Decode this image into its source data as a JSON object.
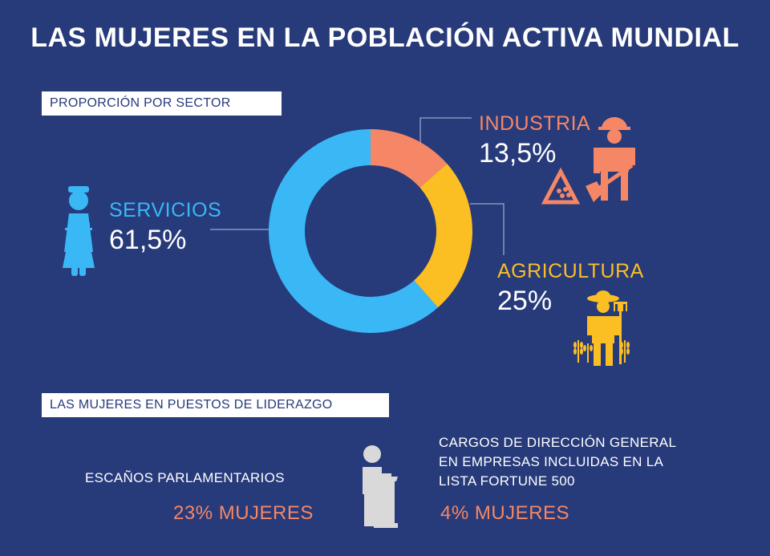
{
  "title": "LAS MUJERES EN LA POBLACIÓN ACTIVA MUNDIAL",
  "section_sector_label": "PROPORCIÓN POR SECTOR",
  "section_leadership_label": "LAS MUJERES EN PUESTOS DE LIDERAZGO",
  "chart_data": {
    "type": "pie",
    "categories": [
      "INDUSTRIA",
      "AGRICULTURA",
      "SERVICIOS"
    ],
    "values": [
      13.5,
      25,
      61.5
    ],
    "value_labels": [
      "13,5%",
      "25%",
      "61,5%"
    ],
    "colors": [
      "#f58766",
      "#fbbf24",
      "#3ab8f6"
    ]
  },
  "leadership": {
    "parliament": {
      "label": "ESCAÑOS PARLAMENTARIOS",
      "value": "23% MUJERES"
    },
    "fortune": {
      "label_lines": [
        "CARGOS DE DIRECCIÓN GENERAL",
        "EN EMPRESAS INCLUIDAS EN LA",
        "LISTA FORTUNE 500"
      ],
      "value": "4% MUJERES"
    }
  },
  "colors": {
    "background": "#273a7a",
    "industria": "#f58766",
    "agricultura": "#fbbf24",
    "servicios": "#3ab8f6",
    "leader_icon": "#d9d9d9"
  },
  "icons": [
    "worker-icon",
    "farmer-icon",
    "waiter-icon",
    "speaker-podium-icon"
  ]
}
